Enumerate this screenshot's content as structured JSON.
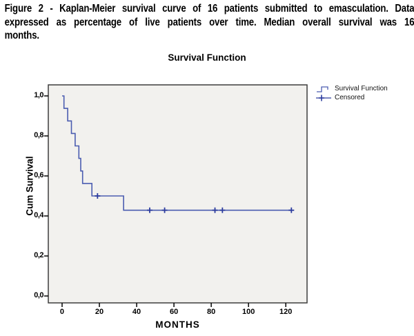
{
  "caption": {
    "lines": [
      "Figure 2 - Kaplan-Meier survival curve of 16 patients submitted to emasculation. Data",
      "expressed as percentage of live patients over time. Median overall survival was 16",
      "months."
    ]
  },
  "chart": {
    "title": "Survival Function",
    "x_axis_label": "MONTHS",
    "y_axis_label": "Cum Survival",
    "legend": {
      "items": [
        {
          "label": "Survival Function",
          "glyph": "step-line-icon"
        },
        {
          "label": "Censored",
          "glyph": "plus-icon"
        }
      ]
    }
  },
  "chart_data": {
    "type": "line",
    "subtype": "kaplan_meier_step_function",
    "title": "Survival Function",
    "xlabel": "MONTHS",
    "ylabel": "Cum Survival",
    "xlim": [
      -7.4,
      131.4
    ],
    "ylim": [
      -0.0345,
      1.0552
    ],
    "grid": false,
    "legend_position": "outside-top-right",
    "x_ticks": {
      "values": [
        0,
        20,
        40,
        60,
        80,
        100,
        120
      ],
      "labels": [
        "0",
        "20",
        "40",
        "60",
        "80",
        "100",
        "120"
      ]
    },
    "y_ticks": {
      "values": [
        1.0,
        0.8,
        0.6,
        0.4,
        0.2,
        0.0
      ],
      "labels": [
        "1,0",
        "0,8",
        "0,6",
        "0,4",
        "0,2",
        "0,0"
      ]
    },
    "series": [
      {
        "name": "Survival Function",
        "steps": [
          [
            0,
            1.0
          ],
          [
            1,
            0.9375
          ],
          [
            3,
            0.875
          ],
          [
            5,
            0.8125
          ],
          [
            7,
            0.75
          ],
          [
            9,
            0.6875
          ],
          [
            10,
            0.625
          ],
          [
            11,
            0.5625
          ],
          [
            16,
            0.5
          ],
          [
            33,
            0.4286
          ]
        ],
        "end_time": 123
      }
    ],
    "censored_points": [
      [
        19,
        0.5
      ],
      [
        47,
        0.4286
      ],
      [
        55,
        0.4286
      ],
      [
        82,
        0.4286
      ],
      [
        86,
        0.4286
      ],
      [
        123,
        0.4286
      ]
    ],
    "n_patients": 16,
    "median_survival_months": 16,
    "colors": {
      "line": "#4a5cb0",
      "censored": "#2c3c9e",
      "plot_background": "#f2f1ee",
      "frame_border": "#3c3c3c",
      "tick": "#000000"
    }
  }
}
